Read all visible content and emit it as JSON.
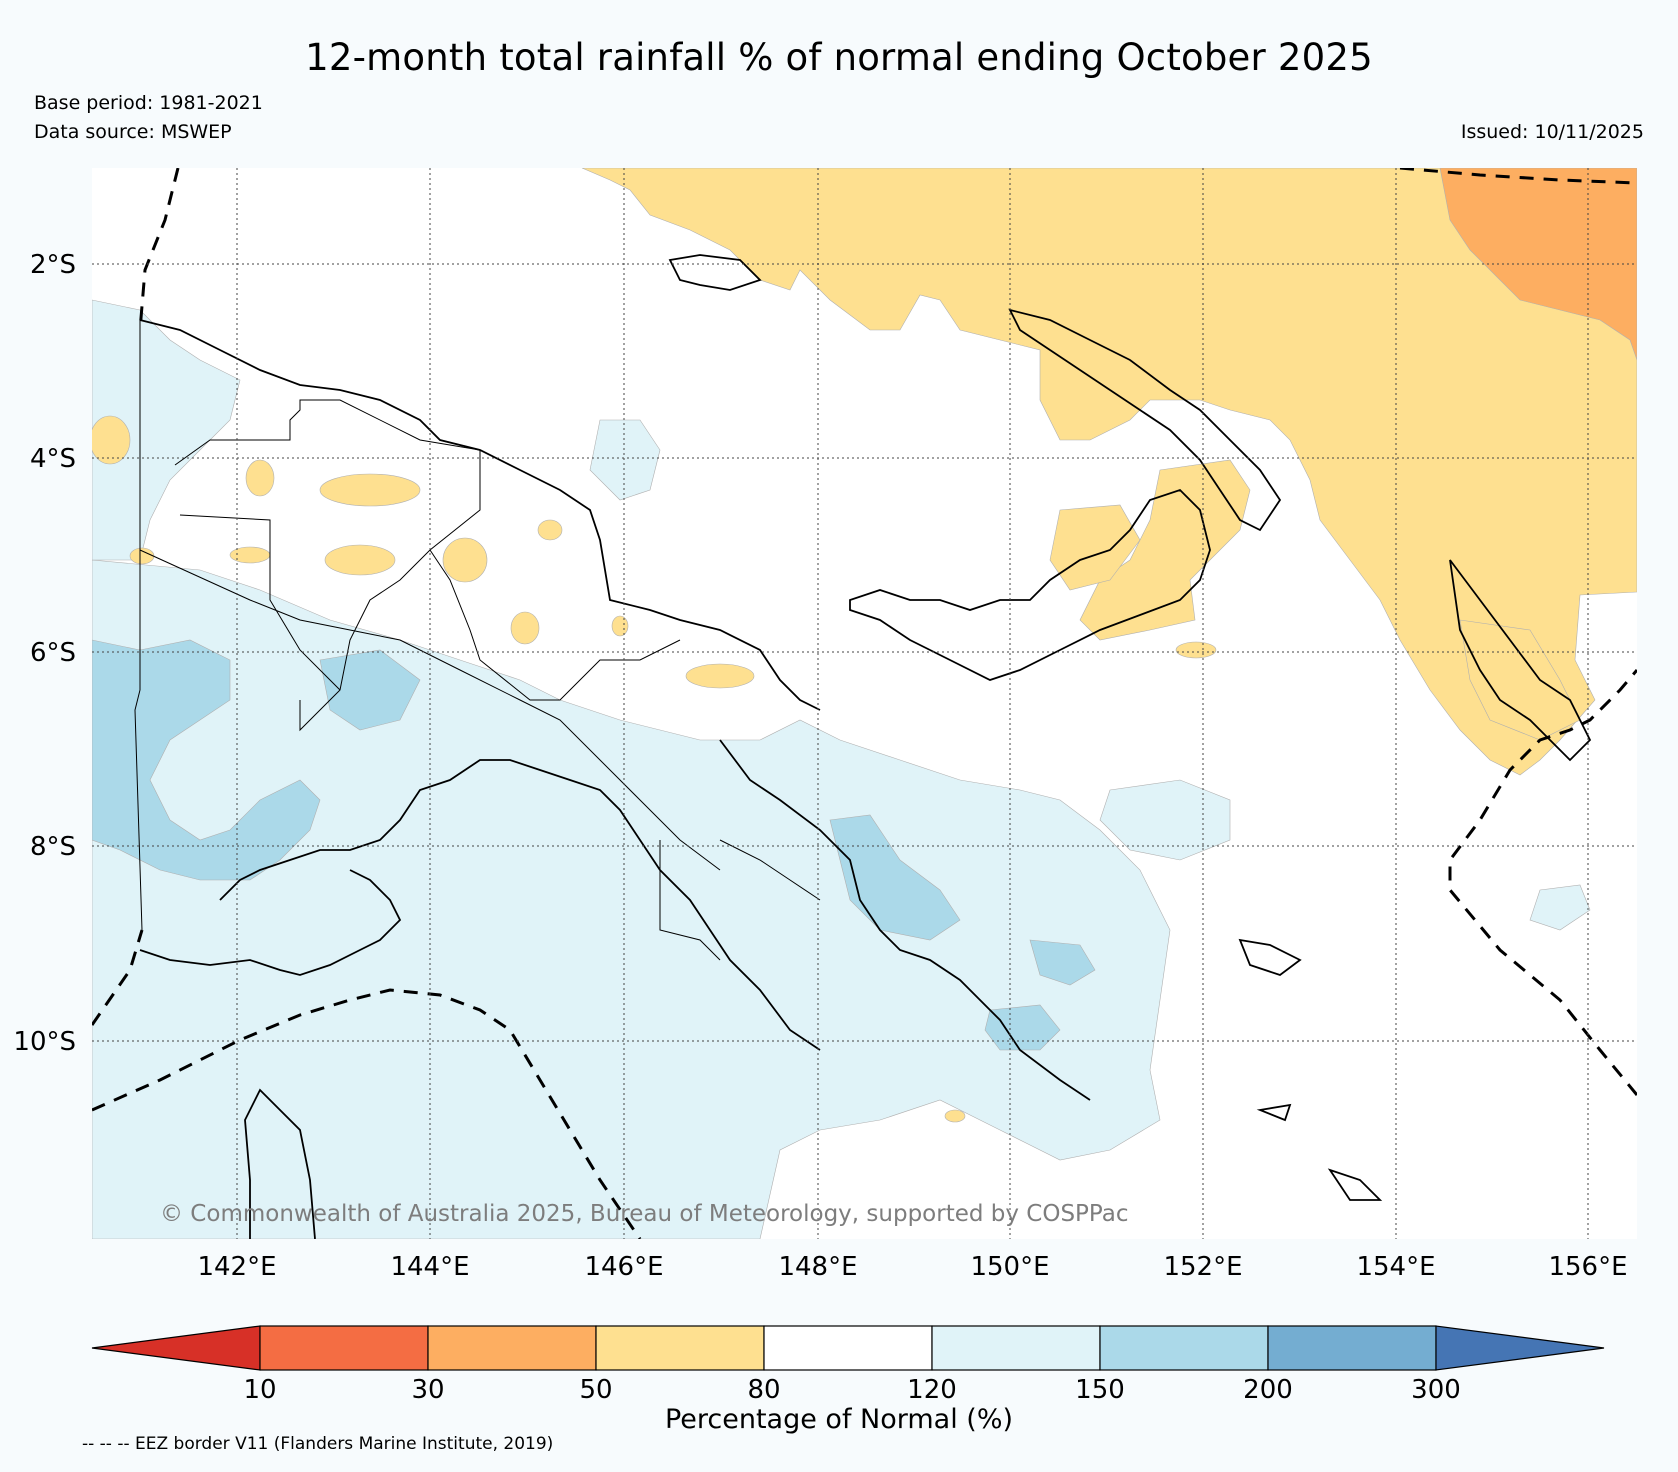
{
  "title": "12-month total rainfall % of normal ending October 2025",
  "base_period": "Base period: 1981-2021",
  "data_source": "Data source: MSWEP",
  "issued": "Issued: 10/11/2025",
  "copyright": "© Commonwealth of Australia 2025, Bureau of Meteorology, supported by COSPPac",
  "lat_labels": [
    "2°S",
    "4°S",
    "6°S",
    "8°S",
    "10°S"
  ],
  "lon_labels": [
    "142°E",
    "144°E",
    "146°E",
    "148°E",
    "150°E",
    "152°E",
    "154°E",
    "156°E"
  ],
  "colorbar": {
    "title": "Percentage of Normal (%)",
    "ticks": [
      "10",
      "30",
      "50",
      "80",
      "120",
      "150",
      "200",
      "300"
    ],
    "colors": {
      "lt10": "#d73027",
      "b10_30": "#f46d43",
      "b30_50": "#fdae61",
      "b50_80": "#fee090",
      "b80_120": "#ffffff",
      "b120_150": "#e0f3f8",
      "b150_200": "#abd9e9",
      "b200_300": "#74add1",
      "gt300": "#4575b4"
    }
  },
  "eez_note": "-- -- -- EEZ border V11 (Flanders Marine Institute, 2019)"
}
